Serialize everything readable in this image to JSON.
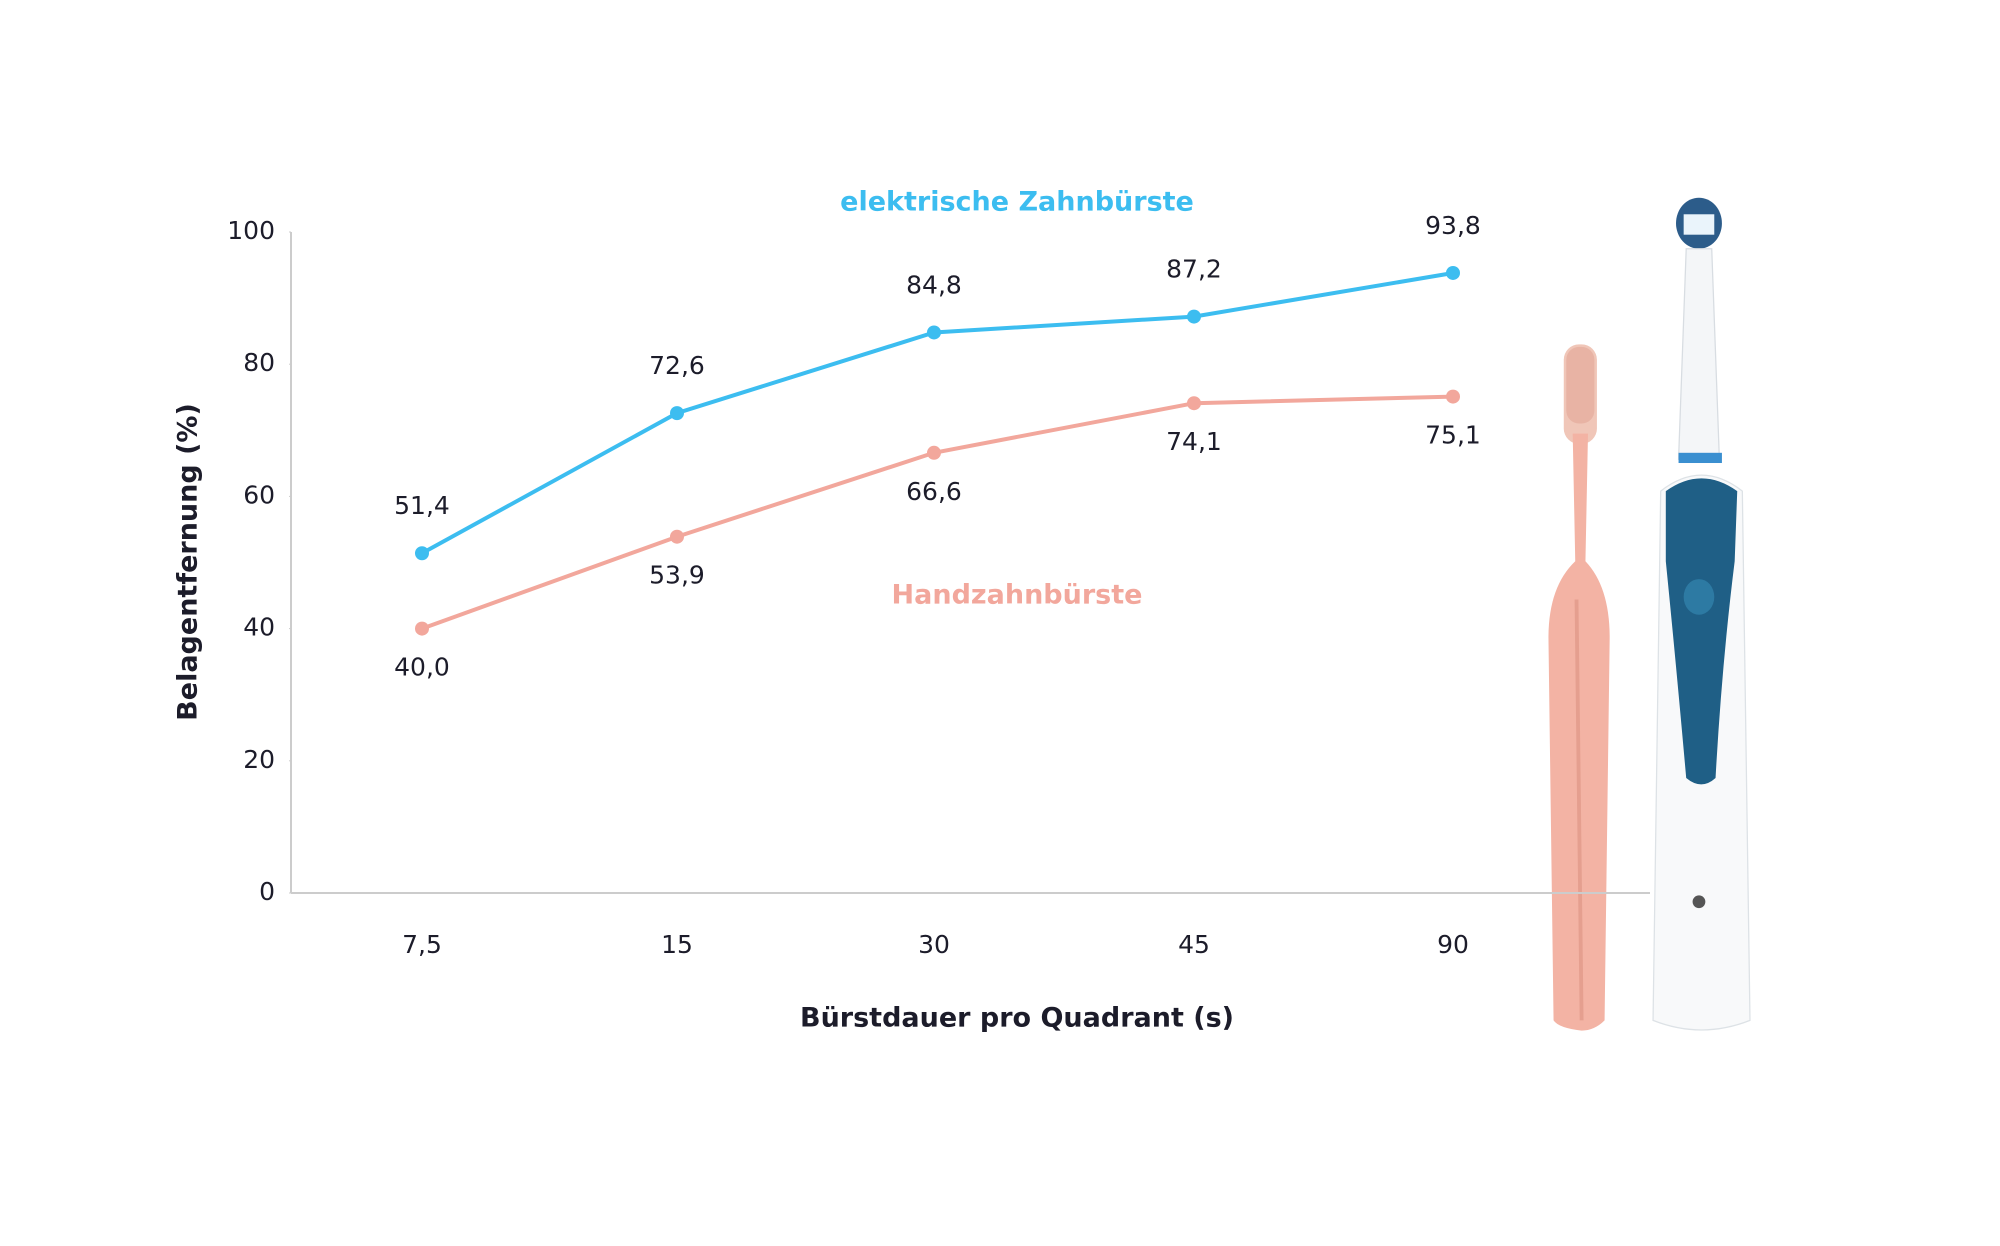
{
  "chart_data": {
    "type": "line",
    "xlabel": "Bürstdauer pro Quadrant (s)",
    "ylabel": "Belagentfernung (%)",
    "categories": [
      "7,5",
      "15",
      "30",
      "45",
      "90"
    ],
    "series": [
      {
        "name": "elektrische Zahnbürste",
        "color": "#3cbdf0",
        "values": [
          51.4,
          72.6,
          84.8,
          87.2,
          93.8
        ],
        "value_labels": [
          "51,4",
          "72,6",
          "84,8",
          "87,2",
          "93,8"
        ]
      },
      {
        "name": "Handzahnbürste",
        "color": "#f2a79c",
        "values": [
          40.0,
          53.9,
          66.6,
          74.1,
          75.1
        ],
        "value_labels": [
          "40,0",
          "53,9",
          "66,6",
          "74,1",
          "75,1"
        ]
      }
    ],
    "ylim": [
      0,
      100
    ],
    "yticks": [
      0,
      20,
      40,
      60,
      80,
      100
    ],
    "grid": false
  }
}
